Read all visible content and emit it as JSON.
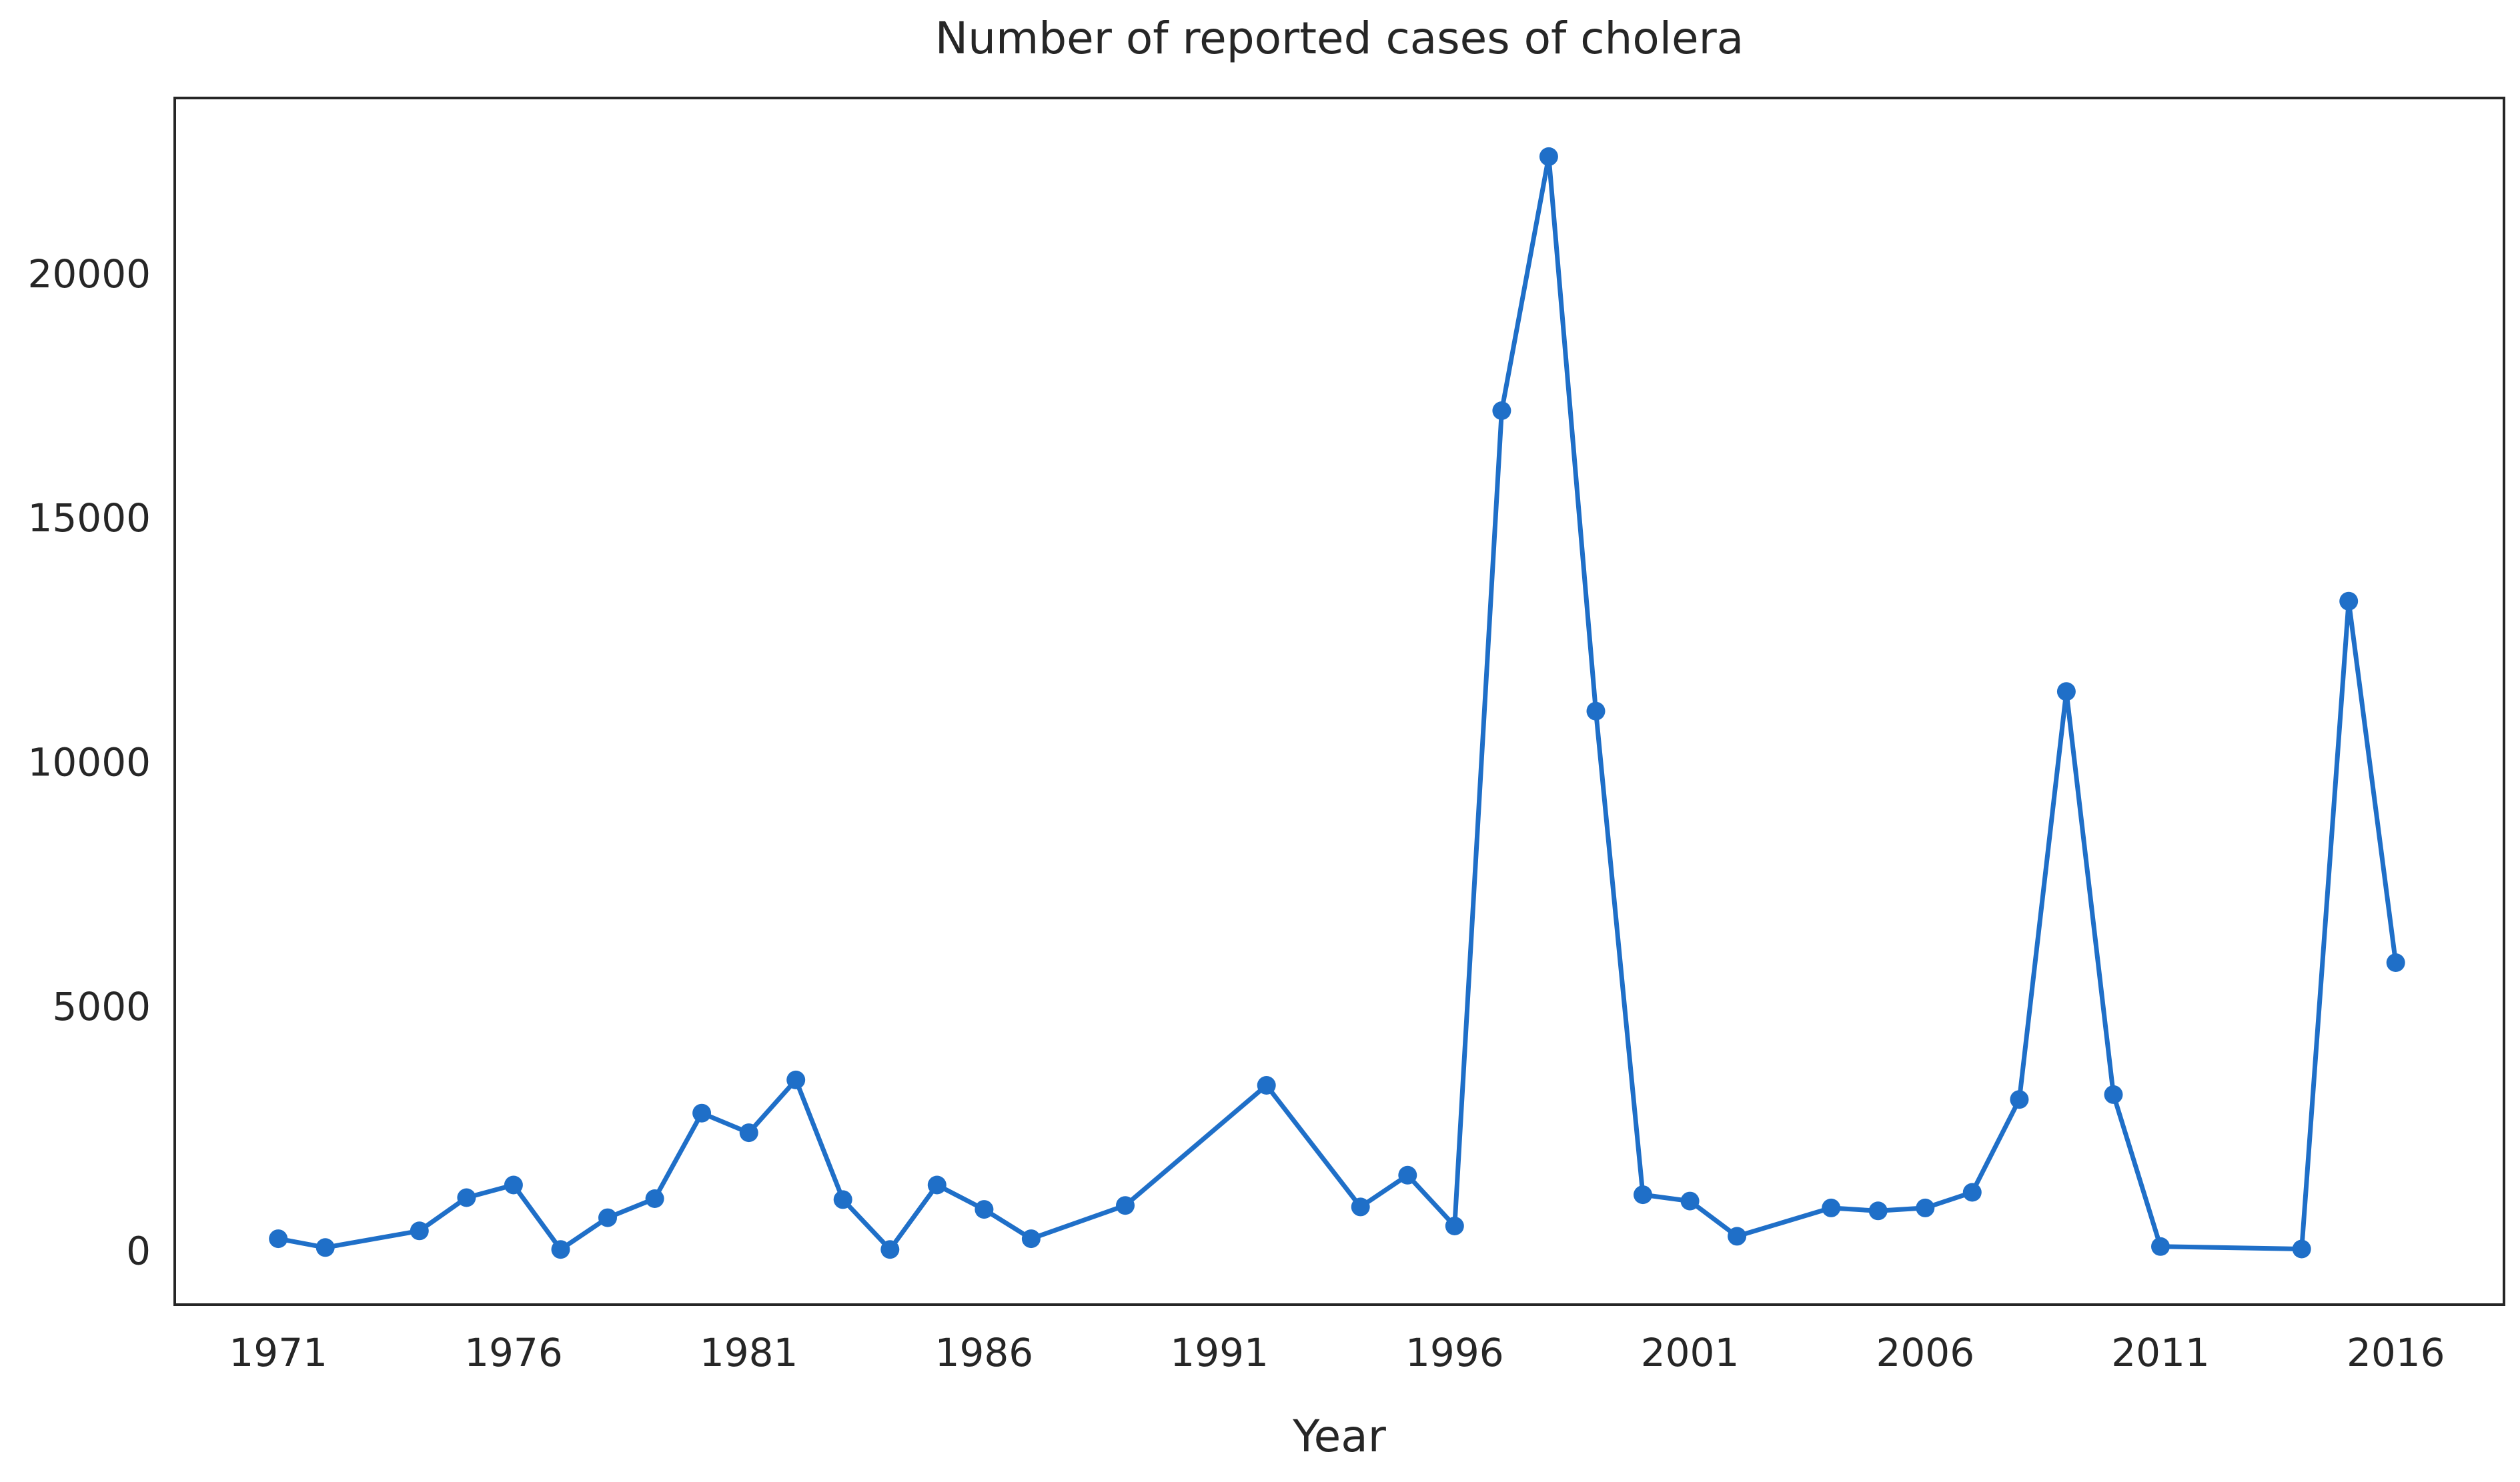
{
  "chart_data": {
    "type": "line",
    "title": "Number of reported cases of cholera",
    "xlabel": "Year",
    "ylabel": "",
    "xlim": [
      1968.8,
      2018.3
    ],
    "ylim": [
      -1100,
      23600
    ],
    "xticks": [
      1971,
      1976,
      1981,
      1986,
      1991,
      1996,
      2001,
      2006,
      2011,
      2016
    ],
    "yticks": [
      0,
      5000,
      10000,
      15000,
      20000
    ],
    "grid": false,
    "legend": "none",
    "line_color": "#1f6fc8",
    "series": [
      {
        "x": [
          1971,
          1972,
          1974,
          1975,
          1976,
          1977,
          1978,
          1979,
          1980,
          1981,
          1982,
          1983,
          1984,
          1985,
          1986,
          1987,
          1989,
          1992,
          1994,
          1995,
          1996,
          1997,
          1998,
          1999,
          2000,
          2001,
          2002,
          2004,
          2005,
          2006,
          2007,
          2008,
          2009,
          2010,
          2011,
          2014,
          2015,
          2016
        ],
        "y": [
          250,
          70,
          410,
          1090,
          1350,
          30,
          680,
          1070,
          2820,
          2420,
          3500,
          1050,
          30,
          1350,
          850,
          250,
          930,
          3390,
          900,
          1550,
          510,
          17200,
          22400,
          11050,
          1150,
          1020,
          300,
          880,
          820,
          880,
          1200,
          3100,
          11450,
          3200,
          90,
          40,
          13300,
          5900
        ]
      }
    ]
  }
}
